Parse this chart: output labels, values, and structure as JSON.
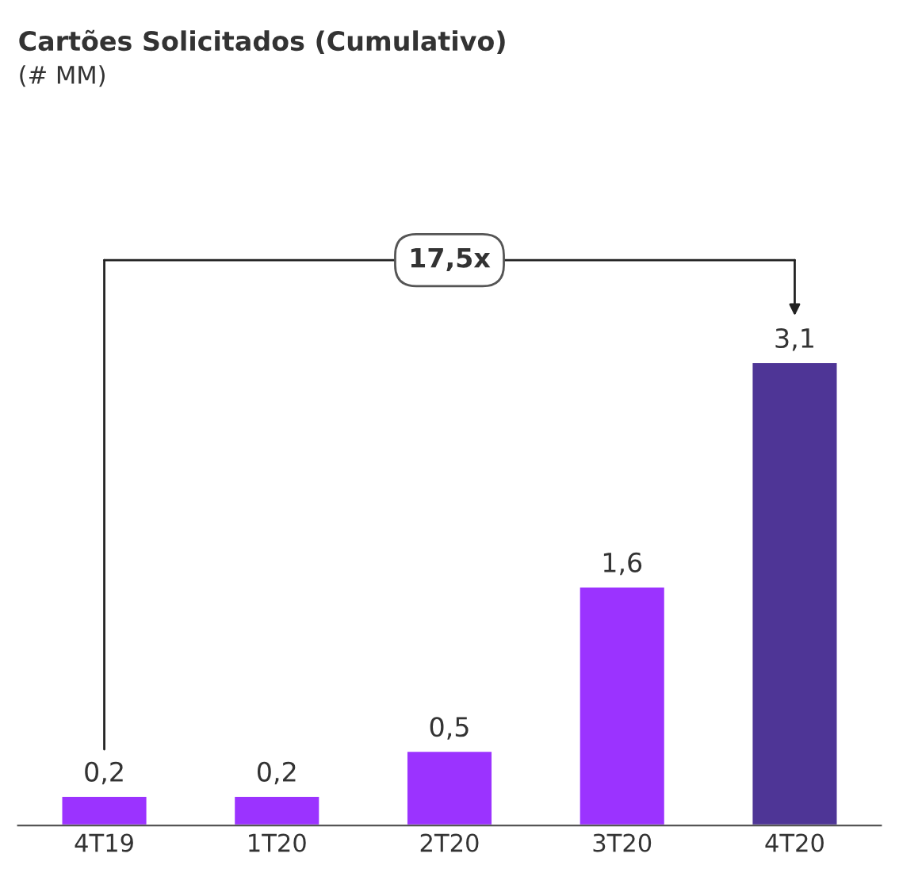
{
  "chart_data": {
    "type": "bar",
    "title": "Cartões Solicitados (Cumulativo)",
    "subtitle": "(# MM)",
    "categories": [
      "4T19",
      "1T20",
      "2T20",
      "3T20",
      "4T20"
    ],
    "values": [
      0.2,
      0.2,
      0.5,
      1.6,
      3.1
    ],
    "value_labels": [
      "0,2",
      "0,2",
      "0,5",
      "1,6",
      "3,1"
    ],
    "colors": [
      "#9b33ff",
      "#9b33ff",
      "#9b33ff",
      "#9b33ff",
      "#4e3596"
    ],
    "annotations": [
      "17,5x"
    ]
  }
}
